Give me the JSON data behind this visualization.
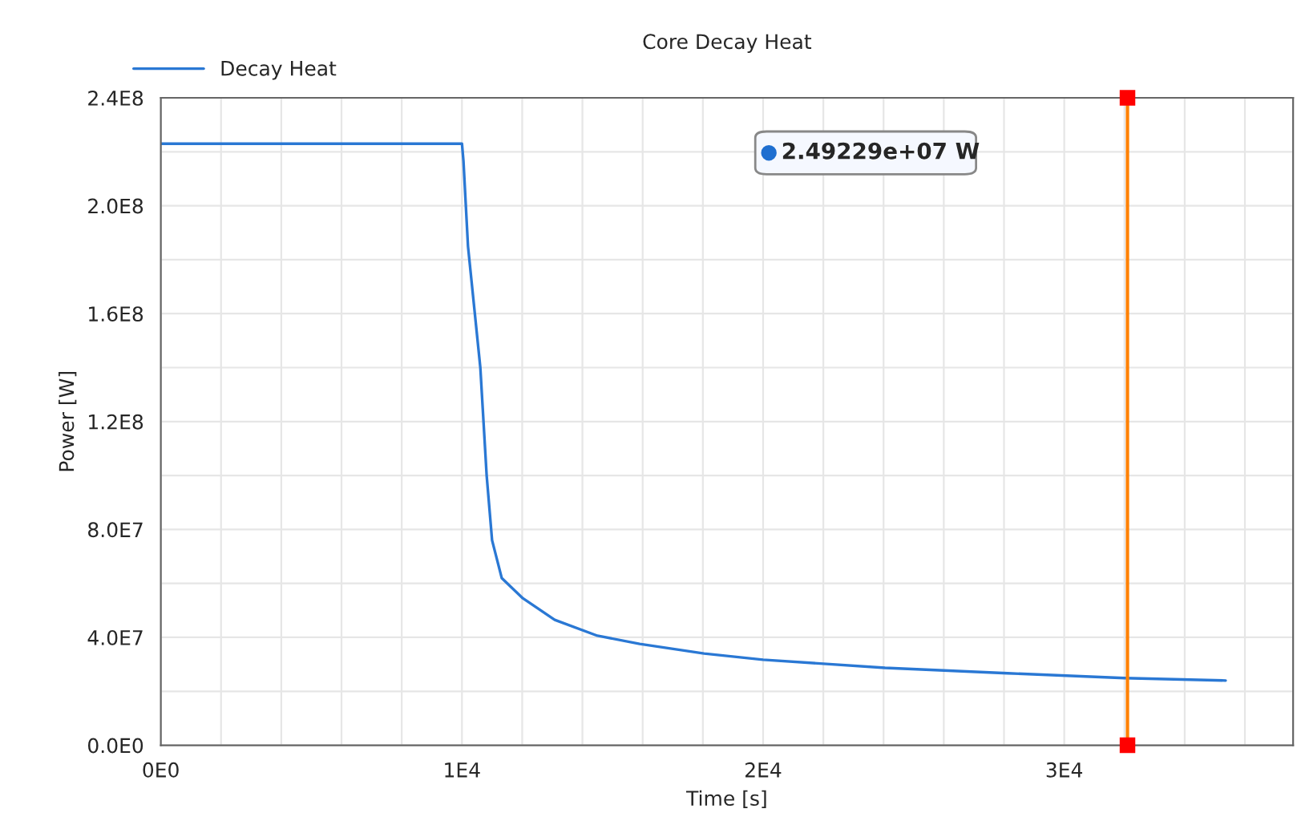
{
  "chart_data": {
    "type": "line",
    "title": "Core Decay Heat",
    "xlabel": "Time [s]",
    "ylabel": "Power [W]",
    "x": [
      0,
      10000,
      10050,
      10200,
      10610,
      10820,
      11000,
      11320,
      12020,
      13080,
      14500,
      15900,
      18040,
      20000,
      24050,
      28120,
      32000,
      35360
    ],
    "series": [
      {
        "name": "Decay Heat",
        "color": "#2a78d4",
        "values": [
          223000000.0,
          223000000.0,
          216500000.0,
          185000000.0,
          140000000.0,
          100000000.0,
          76000000.0,
          62000000.0,
          54500000.0,
          46500000.0,
          40600000.0,
          37600000.0,
          34000000.0,
          31700000.0,
          28700000.0,
          26700000.0,
          24900000.0,
          24000000.0
        ]
      }
    ],
    "xlim": [
      0,
      37600
    ],
    "ylim": [
      0,
      240000000.0
    ],
    "xticks": [
      {
        "value": 0,
        "label": "0E0"
      },
      {
        "value": 2000,
        "label": null
      },
      {
        "value": 4000,
        "label": null
      },
      {
        "value": 6000,
        "label": null
      },
      {
        "value": 8000,
        "label": null
      },
      {
        "value": 10000,
        "label": "1E4"
      },
      {
        "value": 12000,
        "label": null
      },
      {
        "value": 14000,
        "label": null
      },
      {
        "value": 16000,
        "label": null
      },
      {
        "value": 18000,
        "label": null
      },
      {
        "value": 20000,
        "label": "2E4"
      },
      {
        "value": 22000,
        "label": null
      },
      {
        "value": 24000,
        "label": null
      },
      {
        "value": 26000,
        "label": null
      },
      {
        "value": 28000,
        "label": null
      },
      {
        "value": 30000,
        "label": "3E4"
      },
      {
        "value": 32000,
        "label": null
      },
      {
        "value": 34000,
        "label": null
      },
      {
        "value": 36000,
        "label": null
      }
    ],
    "yticks": [
      {
        "value": 0,
        "label": "0.0E0"
      },
      {
        "value": 20000000.0,
        "label": null
      },
      {
        "value": 40000000.0,
        "label": "4.0E7"
      },
      {
        "value": 60000000.0,
        "label": null
      },
      {
        "value": 80000000.0,
        "label": "8.0E7"
      },
      {
        "value": 100000000.0,
        "label": null
      },
      {
        "value": 120000000.0,
        "label": "1.2E8"
      },
      {
        "value": 140000000.0,
        "label": null
      },
      {
        "value": 160000000.0,
        "label": "1.6E8"
      },
      {
        "value": 180000000.0,
        "label": null
      },
      {
        "value": 200000000.0,
        "label": "2.0E8"
      },
      {
        "value": 220000000.0,
        "label": null
      },
      {
        "value": 240000000.0,
        "label": "2.4E8"
      }
    ],
    "ref_lines": [
      {
        "axis": "x",
        "value": 32100,
        "color": "#ff8000"
      }
    ],
    "annotations": [
      "2.49229e+07 W"
    ],
    "grid": true,
    "legend": "top left",
    "marker": "none",
    "line_style": "solid"
  }
}
